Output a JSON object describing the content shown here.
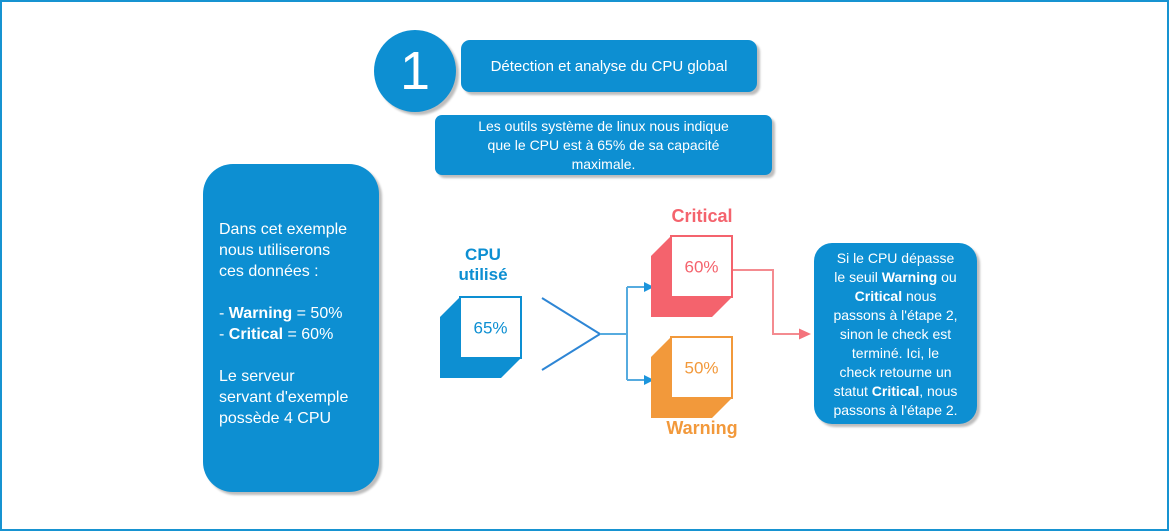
{
  "step": {
    "number": "1",
    "title": "Détection et analyse du CPU global"
  },
  "intro_note": {
    "lines": [
      "Les outils système de linux nous indique",
      "que le CPU est à 65% de sa capacité",
      "maximale."
    ]
  },
  "example_note": {
    "lines": [
      "Dans cet exemple",
      "nous utiliserons",
      "ces données :",
      "",
      "- **Warning** = 50%",
      "- **Critical** = 60%",
      "",
      "Le serveur",
      "servant d'exemple",
      "possède 4 CPU"
    ]
  },
  "cpu_node": {
    "label_lines": [
      "CPU",
      "utilisé"
    ],
    "value": "65%"
  },
  "thresholds": {
    "critical": {
      "label": "Critical",
      "value": "60%"
    },
    "warning": {
      "label": "Warning",
      "value": "50%"
    }
  },
  "outcome_note": {
    "lines": [
      "Si le CPU dépasse",
      "le seuil **Warning** ou",
      "**Critical** nous",
      "passons à l'étape 2,",
      "sinon le check est",
      "terminé. Ici, le",
      "check retourne un",
      "statut **Critical**, nous",
      "passons à l'étape 2."
    ]
  },
  "colors": {
    "primary_blue": "#0d8fd2",
    "salmon": "#f4636d",
    "orange": "#f2993b",
    "line_blue": "#2e86d5",
    "line_light_blue": "#56abdf",
    "arrow_blue": "#1c95dc",
    "arrow_salmon": "#f48b90",
    "arrow_salmon_head": "#f4737c",
    "frame_border": "#1793d1",
    "shadow": "#bdbdbd"
  }
}
